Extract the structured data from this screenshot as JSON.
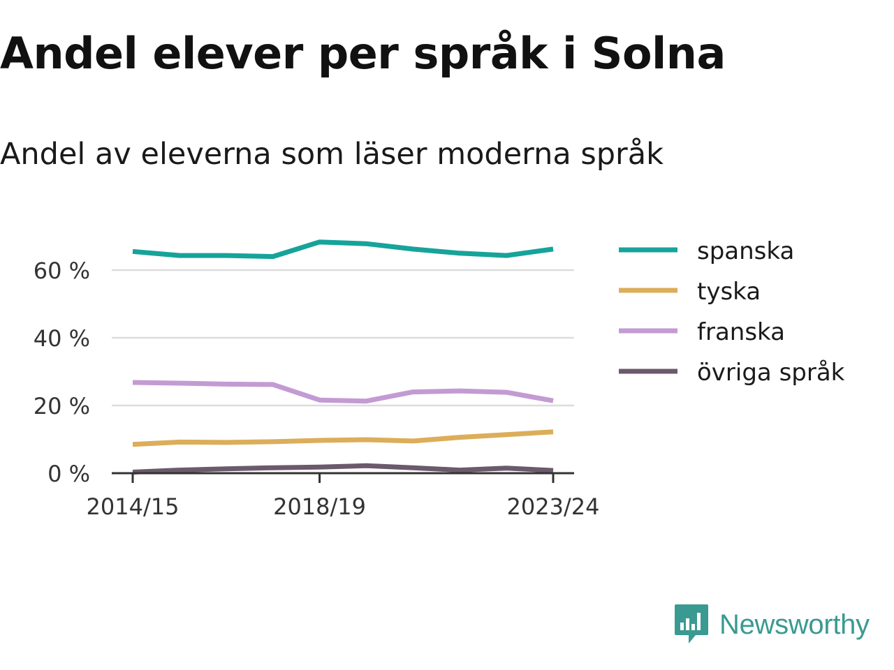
{
  "header": {
    "title": "Andel elever per språk i Solna",
    "subtitle": "Andel av eleverna som läser moderna språk"
  },
  "brand": {
    "name": "Newsworthy",
    "color": "#3a9a91"
  },
  "chart_data": {
    "type": "line",
    "x": [
      "2014/15",
      "2015/16",
      "2016/17",
      "2017/18",
      "2018/19",
      "2019/20",
      "2020/21",
      "2021/22",
      "2022/23",
      "2023/24"
    ],
    "x_tick_labels": [
      "2014/15",
      "2018/19",
      "2023/24"
    ],
    "y_ticks": [
      0,
      20,
      40,
      60
    ],
    "y_tick_labels": [
      "0 %",
      "20 %",
      "40 %",
      "60 %"
    ],
    "ylim": [
      0,
      70
    ],
    "grid": true,
    "legend_position": "right",
    "series": [
      {
        "name": "spanska",
        "color": "#16a39a",
        "values": [
          65.5,
          64.3,
          64.3,
          64.0,
          68.3,
          67.8,
          66.2,
          65.0,
          64.3,
          66.2
        ]
      },
      {
        "name": "tyska",
        "color": "#dcad5a",
        "values": [
          8.5,
          9.2,
          9.1,
          9.3,
          9.7,
          9.9,
          9.5,
          10.6,
          11.4,
          12.2
        ]
      },
      {
        "name": "franska",
        "color": "#c39bd3",
        "values": [
          26.8,
          26.6,
          26.3,
          26.2,
          21.6,
          21.3,
          24.0,
          24.3,
          23.9,
          21.4
        ]
      },
      {
        "name": "övriga språk",
        "color": "#6b5a6b",
        "values": [
          0.3,
          0.9,
          1.3,
          1.6,
          1.8,
          2.2,
          1.6,
          0.9,
          1.5,
          0.8
        ]
      }
    ]
  }
}
